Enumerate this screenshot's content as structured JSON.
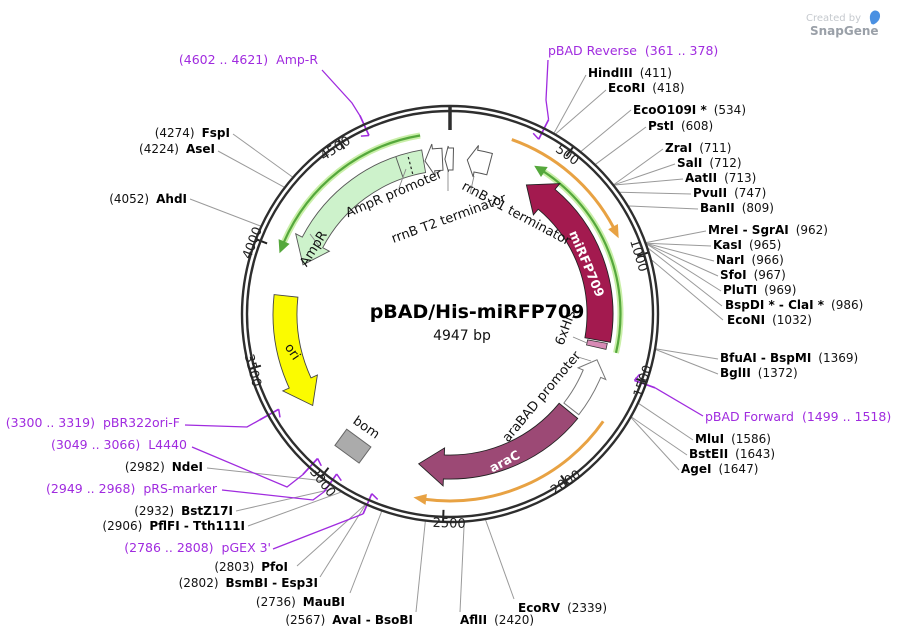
{
  "credit": {
    "created_by": "Created by",
    "brand": "SnapGene"
  },
  "plasmid": {
    "title": "pBAD/His-miRFP709",
    "length": "4947 bp"
  },
  "features": {
    "ampr_promoter": "AmpR promoter",
    "rrnb_t2": "rrnB T2 terminator",
    "rrnb_t1": "rrnB T1 terminator",
    "ampr": "AmpR",
    "mirfp709": "miRFP709",
    "his6": "6xHis",
    "arabad_promoter": "araBAD promoter",
    "arac": "araC",
    "ori": "ori",
    "bom": "bom"
  },
  "ticks": [
    "500",
    "1000",
    "1500",
    "2000",
    "2500",
    "3000",
    "3500",
    "4000",
    "4500"
  ],
  "enzymes": [
    {
      "name": "HindIII",
      "pos": "(411)"
    },
    {
      "name": "EcoRI",
      "pos": "(418)"
    },
    {
      "name": "EcoO109I *",
      "pos": "(534)"
    },
    {
      "name": "PstI",
      "pos": "(608)"
    },
    {
      "name": "ZraI",
      "pos": "(711)"
    },
    {
      "name": "SalI",
      "pos": "(712)"
    },
    {
      "name": "AatII",
      "pos": "(713)"
    },
    {
      "name": "PvuII",
      "pos": "(747)"
    },
    {
      "name": "BanII",
      "pos": "(809)"
    },
    {
      "name": "MreI - SgrAI",
      "pos": "(962)"
    },
    {
      "name": "KasI",
      "pos": "(965)"
    },
    {
      "name": "NarI",
      "pos": "(966)"
    },
    {
      "name": "SfoI",
      "pos": "(967)"
    },
    {
      "name": "PluTI",
      "pos": "(969)"
    },
    {
      "name": "BspDI * - ClaI *",
      "pos": "(986)"
    },
    {
      "name": "EcoNI",
      "pos": "(1032)"
    },
    {
      "name": "BfuAI - BspMI",
      "pos": "(1369)"
    },
    {
      "name": "BglII",
      "pos": "(1372)"
    },
    {
      "name": "MluI",
      "pos": "(1586)"
    },
    {
      "name": "BstEII",
      "pos": "(1643)"
    },
    {
      "name": "AgeI",
      "pos": "(1647)"
    },
    {
      "name": "EcoRV",
      "pos": "(2339)"
    },
    {
      "name": "AflII",
      "pos": "(2420)"
    },
    {
      "name": "AvaI - BsoBI",
      "pos": "(2567)"
    },
    {
      "name": "MauBI",
      "pos": "(2736)"
    },
    {
      "name": "BsmBI - Esp3I",
      "pos": "(2802)"
    },
    {
      "name": "PfoI",
      "pos": "(2803)"
    },
    {
      "name": "PflFI - Tth111I",
      "pos": "(2906)"
    },
    {
      "name": "BstZ17I",
      "pos": "(2932)"
    },
    {
      "name": "NdeI",
      "pos": "(2982)"
    },
    {
      "name": "AhdI",
      "pos": "(4052)"
    },
    {
      "name": "AseI",
      "pos": "(4224)"
    },
    {
      "name": "FspI",
      "pos": "(4274)"
    }
  ],
  "primers": [
    {
      "name": "pBAD Reverse",
      "range": "(361 .. 378)"
    },
    {
      "name": "pBAD Forward",
      "range": "(1499 .. 1518)"
    },
    {
      "name": "pGEX 3'",
      "range": "(2786 .. 2808)"
    },
    {
      "name": "pRS-marker",
      "range": "(2949 .. 2968)"
    },
    {
      "name": "L4440",
      "range": "(3049 .. 3066)"
    },
    {
      "name": "pBR322ori-F",
      "range": "(3300 .. 3319)"
    },
    {
      "name": "Amp-R",
      "range": "(4602 .. 4621)"
    }
  ],
  "colors": {
    "backbone": "#2e2e2e",
    "cds_crimson": "#A31A4F",
    "cds_plum": "#9C4975",
    "feature_green": "#CDF2CB",
    "his_pink": "#D78AB5",
    "ori_yellow": "#FBFB00",
    "bom_gray": "#ABABAB",
    "orf_orange": "#E8A243",
    "orf_green": "#55A83C",
    "orf_green_halo": "#C9EFA8",
    "primer_purple": "#A02BDF",
    "callout_gray": "#9a9a9a"
  }
}
